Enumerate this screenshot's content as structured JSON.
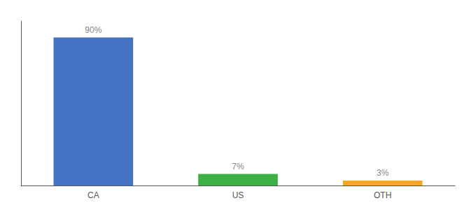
{
  "chart_data": {
    "type": "bar",
    "categories": [
      "CA",
      "US",
      "OTH"
    ],
    "values": [
      90,
      7,
      3
    ],
    "value_labels": [
      "90%",
      "7%",
      "3%"
    ],
    "data_labels": true,
    "colors": [
      "#4472c4",
      "#3cb043",
      "#f5a623"
    ],
    "ylim": [
      0,
      100
    ],
    "grid": false,
    "tick_labels": "x"
  }
}
